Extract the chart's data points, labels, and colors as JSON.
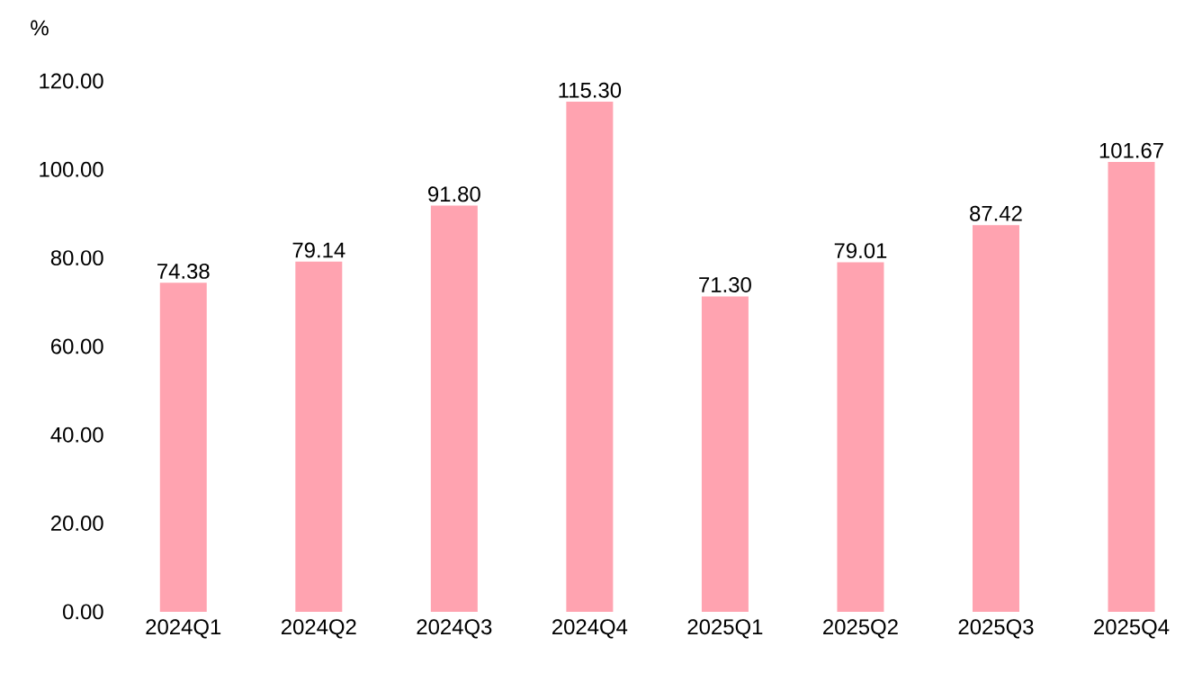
{
  "chart_data": {
    "type": "bar",
    "ylabel": "%",
    "categories": [
      "2024Q1",
      "2024Q2",
      "2024Q3",
      "2024Q4",
      "2025Q1",
      "2025Q2",
      "2025Q3",
      "2025Q4"
    ],
    "values": [
      74.38,
      79.14,
      91.8,
      115.3,
      71.3,
      79.01,
      87.42,
      101.67
    ],
    "value_labels": [
      "74.38",
      "79.14",
      "91.80",
      "115.30",
      "71.30",
      "79.01",
      "87.42",
      "101.67"
    ],
    "color": "#ffa3b0",
    "ylim": [
      0,
      120
    ],
    "yticks": [
      {
        "value": 0,
        "label": "0.00"
      },
      {
        "value": 20,
        "label": "20.00"
      },
      {
        "value": 40,
        "label": "40.00"
      },
      {
        "value": 60,
        "label": "60.00"
      },
      {
        "value": 80,
        "label": "80.00"
      },
      {
        "value": 100,
        "label": "100.00"
      },
      {
        "value": 120,
        "label": "120.00"
      }
    ]
  }
}
